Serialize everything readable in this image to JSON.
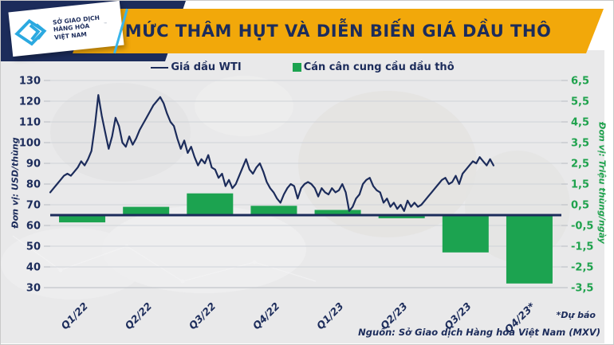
{
  "header": {
    "title": "MỨC THÂM HỤT VÀ DIỄN BIẾN GIÁ DẦU THÔ",
    "logo": {
      "lines": [
        "SỞ GIAO DỊCH",
        "HÀNG HÓA",
        "VIỆT NAM"
      ],
      "trademark": "™",
      "icon": "mxv-diamond-logo"
    },
    "colors": {
      "banner_gold": "#f2a80a",
      "navy": "#1c2c5b",
      "logo_blue": "#2ba9e0"
    }
  },
  "legend": {
    "items": [
      {
        "swatch": "line",
        "label": "Giá dầu WTI",
        "color": "#1c2c5b"
      },
      {
        "swatch": "square",
        "label": "Cán cân cung cầu dầu thô",
        "color": "#1ca350"
      }
    ]
  },
  "chart_data": {
    "type": "combo",
    "title": "MỨC THÂM HỤT VÀ DIỄN BIẾN GIÁ DẦU THÔ",
    "x_labels": [
      "Q1/22",
      "Q2/22",
      "Q3/22",
      "Q4/22",
      "Q1/23",
      "Q2/23",
      "Q3/23",
      "Q4/23*"
    ],
    "left_axis": {
      "label": "Đơn vị: USD/thùng",
      "ticks": [
        130,
        120,
        110,
        100,
        90,
        80,
        70,
        60,
        50,
        40,
        30
      ],
      "range": [
        30,
        130
      ],
      "color": "#1c2c5b"
    },
    "right_axis": {
      "label": "Đơn vị: Triệu thùng/ngày",
      "tick_labels": [
        "6,5",
        "5,5",
        "4,5",
        "3,5",
        "2,5",
        "1,5",
        "0,5",
        "-0,5",
        "-1,5",
        "-2,5",
        "-3,5"
      ],
      "tick_values": [
        6.5,
        5.5,
        4.5,
        3.5,
        2.5,
        1.5,
        0.5,
        -0.5,
        -1.5,
        -2.5,
        -3.5
      ],
      "range": [
        -3.5,
        6.5
      ],
      "color": "#1fa24d"
    },
    "series": [
      {
        "name": "Cán cân cung cầu dầu thô",
        "type": "bar",
        "axis": "right",
        "unit": "Triệu thùng/ngày",
        "color": "#1ca350",
        "categories": [
          "Q1/22",
          "Q2/22",
          "Q3/22",
          "Q4/22",
          "Q1/23",
          "Q2/23",
          "Q3/23",
          "Q4/23*"
        ],
        "values": [
          -0.35,
          0.4,
          1.05,
          0.45,
          0.25,
          -0.15,
          -1.8,
          -3.3
        ]
      },
      {
        "name": "Giá dầu WTI",
        "type": "line",
        "axis": "left",
        "unit": "USD/thùng",
        "color": "#1c2c5b",
        "x_extent_note": "daily line from start Q1/22 to end Q3/23, no data for forecast Q4/23*",
        "values": [
          76,
          78,
          80,
          82,
          84,
          85,
          84,
          86,
          88,
          91,
          89,
          92,
          96,
          108,
          123,
          113,
          105,
          97,
          103,
          112,
          108,
          100,
          98,
          103,
          99,
          102,
          106,
          109,
          112,
          115,
          118,
          120,
          122,
          119,
          114,
          110,
          108,
          102,
          97,
          101,
          95,
          98,
          93,
          89,
          92,
          90,
          94,
          88,
          87,
          83,
          85,
          79,
          82,
          78,
          80,
          84,
          88,
          92,
          87,
          85,
          88,
          90,
          86,
          81,
          78,
          76,
          73,
          71,
          75,
          78,
          80,
          79,
          73,
          78,
          80,
          81,
          80,
          78,
          74,
          78,
          76,
          75,
          78,
          76,
          77,
          80,
          76,
          67,
          69,
          73,
          75,
          80,
          82,
          83,
          79,
          77,
          76,
          71,
          73,
          69,
          71,
          68,
          70,
          67,
          72,
          69,
          71,
          69,
          70,
          72,
          74,
          76,
          78,
          80,
          82,
          83,
          80,
          81,
          84,
          80,
          85,
          87,
          89,
          91,
          90,
          93,
          91,
          89,
          92,
          89
        ]
      }
    ],
    "grid": true,
    "legend_position": "top"
  },
  "footnote": "*Dự báo",
  "source": "Nguồn: Sở Giao dịch Hàng hóa Việt Nam (MXV)"
}
